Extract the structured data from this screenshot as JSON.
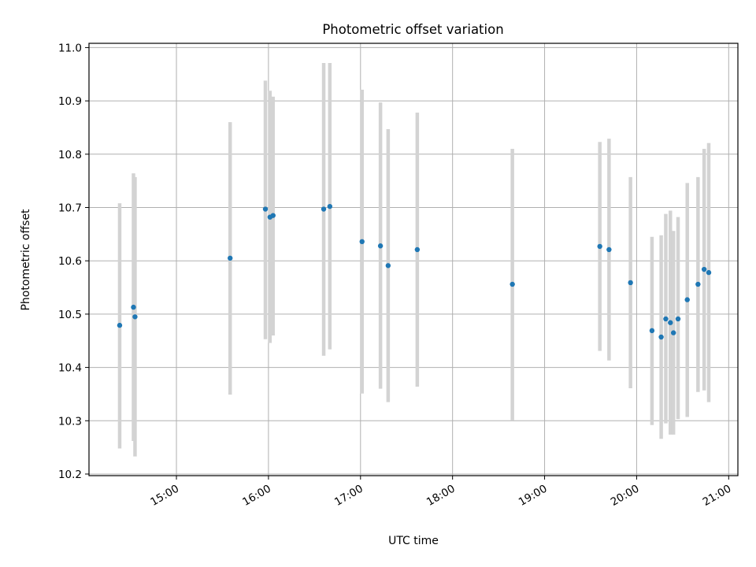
{
  "chart_data": {
    "type": "scatter",
    "title": "Photometric offset variation",
    "xlabel": "UTC time",
    "ylabel": "Photometric offset",
    "x_ticks": [
      "15:00",
      "16:00",
      "17:00",
      "18:00",
      "19:00",
      "20:00",
      "21:00"
    ],
    "y_ticks": [
      "10.2",
      "10.3",
      "10.4",
      "10.5",
      "10.6",
      "10.7",
      "10.8",
      "10.9",
      "11.0"
    ],
    "xlim": [
      "14:03",
      "21:06"
    ],
    "ylim": [
      10.197,
      11.008
    ],
    "grid": true,
    "marker_color": "#1f77b4",
    "errorbar_color": "#d3d3d3",
    "points": [
      {
        "time": "14:23",
        "y": 10.479,
        "lo": 10.248,
        "hi": 10.708
      },
      {
        "time": "14:32",
        "y": 10.513,
        "lo": 10.262,
        "hi": 10.764
      },
      {
        "time": "14:33",
        "y": 10.495,
        "lo": 10.233,
        "hi": 10.757
      },
      {
        "time": "15:35",
        "y": 10.605,
        "lo": 10.349,
        "hi": 10.86
      },
      {
        "time": "15:58",
        "y": 10.697,
        "lo": 10.453,
        "hi": 10.938
      },
      {
        "time": "16:01",
        "y": 10.682,
        "lo": 10.446,
        "hi": 10.919
      },
      {
        "time": "16:03",
        "y": 10.685,
        "lo": 10.46,
        "hi": 10.908
      },
      {
        "time": "16:36",
        "y": 10.697,
        "lo": 10.422,
        "hi": 10.971
      },
      {
        "time": "16:40",
        "y": 10.702,
        "lo": 10.434,
        "hi": 10.971
      },
      {
        "time": "17:01",
        "y": 10.636,
        "lo": 10.351,
        "hi": 10.921
      },
      {
        "time": "17:13",
        "y": 10.628,
        "lo": 10.36,
        "hi": 10.897
      },
      {
        "time": "17:18",
        "y": 10.591,
        "lo": 10.335,
        "hi": 10.847
      },
      {
        "time": "17:37",
        "y": 10.621,
        "lo": 10.364,
        "hi": 10.878
      },
      {
        "time": "18:39",
        "y": 10.556,
        "lo": 10.301,
        "hi": 10.81
      },
      {
        "time": "19:36",
        "y": 10.627,
        "lo": 10.431,
        "hi": 10.823
      },
      {
        "time": "19:42",
        "y": 10.621,
        "lo": 10.413,
        "hi": 10.829
      },
      {
        "time": "19:56",
        "y": 10.559,
        "lo": 10.361,
        "hi": 10.757
      },
      {
        "time": "20:10",
        "y": 10.469,
        "lo": 10.292,
        "hi": 10.645
      },
      {
        "time": "20:16",
        "y": 10.457,
        "lo": 10.266,
        "hi": 10.648
      },
      {
        "time": "20:19",
        "y": 10.491,
        "lo": 10.295,
        "hi": 10.688
      },
      {
        "time": "20:22",
        "y": 10.484,
        "lo": 10.274,
        "hi": 10.694
      },
      {
        "time": "20:24",
        "y": 10.465,
        "lo": 10.274,
        "hi": 10.656
      },
      {
        "time": "20:27",
        "y": 10.491,
        "lo": 10.303,
        "hi": 10.682
      },
      {
        "time": "20:33",
        "y": 10.527,
        "lo": 10.307,
        "hi": 10.746
      },
      {
        "time": "20:40",
        "y": 10.556,
        "lo": 10.354,
        "hi": 10.757
      },
      {
        "time": "20:44",
        "y": 10.584,
        "lo": 10.357,
        "hi": 10.81
      },
      {
        "time": "20:47",
        "y": 10.578,
        "lo": 10.335,
        "hi": 10.821
      }
    ]
  }
}
